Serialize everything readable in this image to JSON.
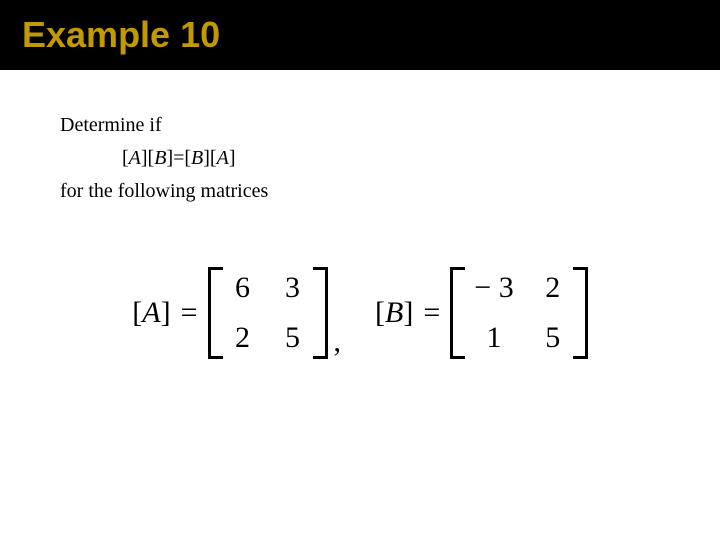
{
  "header": {
    "title": "Example 10",
    "title_color": "#c19a00",
    "bg_color": "#000000",
    "title_fontsize": 36
  },
  "body": {
    "line1": "Determine if",
    "equation_parts": {
      "lb1": "[",
      "a1": "A",
      "rb1": "][",
      "b1": "B",
      "mid": "]=[",
      "b2": "B",
      "rb2": "][",
      "a2": "A",
      "end": "]"
    },
    "line3": "for the following matrices",
    "fontsize": 20
  },
  "matrices": {
    "A": {
      "label_open": "[",
      "label_var": "A",
      "label_close": "]",
      "eq": "=",
      "rows": [
        [
          "6",
          "3"
        ],
        [
          "2",
          "5"
        ]
      ]
    },
    "comma": ",",
    "B": {
      "label_open": "[",
      "label_var": "B",
      "label_close": "]",
      "eq": "=",
      "rows": [
        [
          "− 3",
          "2"
        ],
        [
          "1",
          "5"
        ]
      ]
    },
    "fontsize": 30,
    "bracket_thickness": 3,
    "bracket_height": 92
  },
  "colors": {
    "text": "#000000",
    "background": "#ffffff"
  }
}
